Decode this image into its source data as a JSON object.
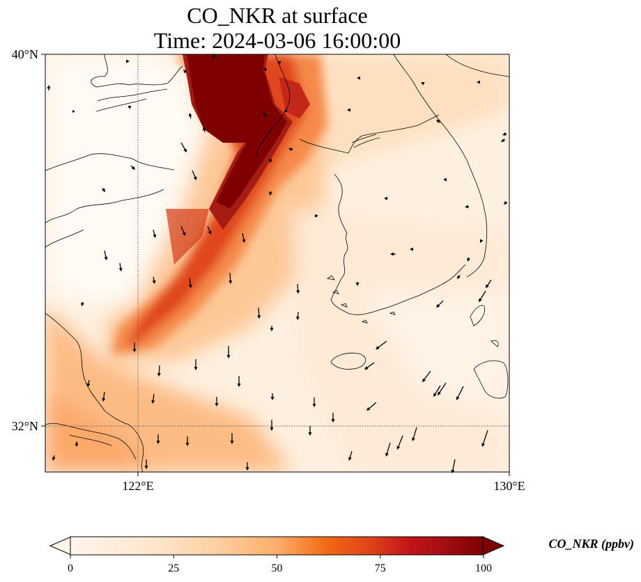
{
  "title": {
    "line1": "CO_NKR at surface",
    "line2": "Time: 2024-03-06 16:00:00"
  },
  "axes": {
    "lat_ticks": [
      "40°N",
      "32°N"
    ],
    "lon_ticks": [
      "122°E",
      "130°E"
    ],
    "lon_range": [
      120,
      130
    ],
    "lat_range": [
      31,
      40
    ],
    "gridlines": "dotted at 122°E and 32°N"
  },
  "colorbar": {
    "label": "CO_NKR (ppbv)",
    "ticks": [
      "0",
      "25",
      "50",
      "75",
      "100"
    ],
    "min": 0,
    "max": 100,
    "extend": "both",
    "colormap": [
      "#fff5eb",
      "#fdd9b3",
      "#fdae6b",
      "#f16913",
      "#d94801",
      "#a50f15",
      "#7f0000"
    ]
  },
  "map_layers": {
    "plume": "high CO_NKR plume from northwest (≈40°N,123.5–124.5°E) extending southwest to ≈33.5°N,121.5°E",
    "wind_vectors": "black arrows, mostly southward/southwestward"
  }
}
